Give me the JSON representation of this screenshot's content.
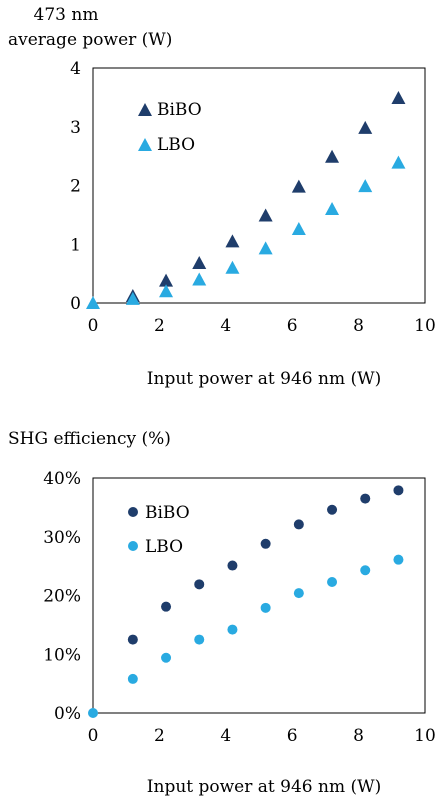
{
  "colors": {
    "bibo": "#1f3d6b",
    "lbo": "#29aae1"
  },
  "chart_data": [
    {
      "type": "scatter",
      "marker": "triangle",
      "ylabel_line1": "473 nm",
      "ylabel_line2": "average power (W)",
      "xlabel": "Input power at 946 nm (W)",
      "xlim": [
        0,
        10
      ],
      "ylim": [
        0,
        4
      ],
      "xticks": [
        "0",
        "2",
        "4",
        "6",
        "8",
        "10"
      ],
      "yticks": [
        "0",
        "1",
        "2",
        "3",
        "4"
      ],
      "legend": "top-left",
      "series": [
        {
          "name": "BiBO",
          "x": [
            1.2,
            2.2,
            3.2,
            4.2,
            5.2,
            6.2,
            7.2,
            8.2,
            9.2
          ],
          "y": [
            0.12,
            0.38,
            0.68,
            1.05,
            1.49,
            1.98,
            2.49,
            2.98,
            3.49
          ]
        },
        {
          "name": "LBO",
          "x": [
            0,
            1.2,
            2.2,
            3.2,
            4.2,
            5.2,
            6.2,
            7.2,
            8.2,
            9.2
          ],
          "y": [
            0,
            0.07,
            0.2,
            0.4,
            0.6,
            0.93,
            1.26,
            1.6,
            1.99,
            2.39
          ]
        }
      ]
    },
    {
      "type": "scatter",
      "marker": "circle",
      "ylabel_line1": "SHG efficiency (%)",
      "xlabel": "Input power at 946 nm (W)",
      "xlim": [
        0,
        10
      ],
      "ylim": [
        0,
        40
      ],
      "xticks": [
        "0",
        "2",
        "4",
        "6",
        "8",
        "10"
      ],
      "yticks": [
        "0%",
        "10%",
        "20%",
        "30%",
        "40%"
      ],
      "legend": "top-left",
      "series": [
        {
          "name": "BiBO",
          "x": [
            1.2,
            2.2,
            3.2,
            4.2,
            5.2,
            6.2,
            7.2,
            8.2,
            9.2
          ],
          "y": [
            12.5,
            18.1,
            21.9,
            25.1,
            28.8,
            32.1,
            34.6,
            36.5,
            37.9
          ]
        },
        {
          "name": "LBO",
          "x": [
            0,
            1.2,
            2.2,
            3.2,
            4.2,
            5.2,
            6.2,
            7.2,
            8.2,
            9.2
          ],
          "y": [
            0,
            5.8,
            9.4,
            12.5,
            14.2,
            17.9,
            20.4,
            22.3,
            24.3,
            26.1
          ]
        }
      ]
    }
  ]
}
